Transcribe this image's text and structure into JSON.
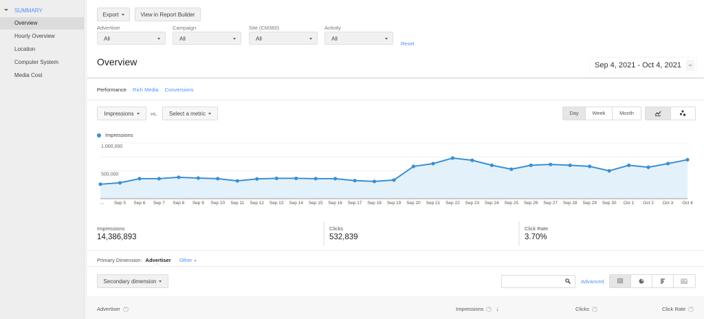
{
  "sidebar": {
    "section_label": "SUMMARY",
    "items": [
      {
        "label": "Overview",
        "active": true
      },
      {
        "label": "Hourly Overview",
        "active": false
      },
      {
        "label": "Location",
        "active": false
      },
      {
        "label": "Computer System",
        "active": false
      },
      {
        "label": "Media Cost",
        "active": false
      }
    ]
  },
  "toolbar": {
    "export_label": "Export",
    "report_builder_label": "View in Report Builder"
  },
  "filters": [
    {
      "label": "Advertiser",
      "value": "All"
    },
    {
      "label": "Campaign",
      "value": "All"
    },
    {
      "label": "Site (CM360)",
      "value": "All"
    },
    {
      "label": "Activity",
      "value": "All"
    }
  ],
  "reset_label": "Reset",
  "page_title": "Overview",
  "date_range": "Sep 4, 2021 - Oct 4, 2021",
  "tabs": [
    {
      "label": "Performance",
      "active": true
    },
    {
      "label": "Rich Media",
      "active": false
    },
    {
      "label": "Conversions",
      "active": false
    }
  ],
  "metric_selector": {
    "primary": "Impressions",
    "vs_label": "vs.",
    "secondary": "Select a metric"
  },
  "granularity": {
    "options": [
      "Day",
      "Week",
      "Month"
    ],
    "selected": "Day"
  },
  "chart_type_toggle": {
    "options": [
      "line-chart-icon",
      "motion-chart-icon"
    ],
    "selected": "line-chart-icon"
  },
  "colors": {
    "accent": "#4d90fe",
    "series": "#3a8fd0",
    "area_fill": "#e3f1fa",
    "sidebar_bg": "#eeeeee"
  },
  "chart_data": {
    "type": "area",
    "title": "",
    "legend": [
      "Impressions"
    ],
    "legend_position": "top-left",
    "xlabel": "",
    "ylabel": "",
    "ylim": [
      0,
      1000000
    ],
    "yticks": [
      "500,000",
      "1,000,000"
    ],
    "grid": true,
    "categories": [
      "...",
      "Sep 5",
      "Sep 6",
      "Sep 7",
      "Sep 8",
      "Sep 9",
      "Sep 10",
      "Sep 11",
      "Sep 12",
      "Sep 13",
      "Sep 14",
      "Sep 15",
      "Sep 16",
      "Sep 17",
      "Sep 18",
      "Sep 19",
      "Sep 20",
      "Sep 21",
      "Sep 22",
      "Sep 23",
      "Sep 24",
      "Sep 25",
      "Sep 26",
      "Sep 27",
      "Sep 28",
      "Sep 29",
      "Sep 30",
      "Oct 1",
      "Oct 2",
      "Oct 3",
      "Oct 4"
    ],
    "series": [
      {
        "name": "Impressions",
        "values": [
          260000,
          285000,
          360000,
          360000,
          385000,
          370000,
          360000,
          320000,
          355000,
          365000,
          365000,
          360000,
          360000,
          325000,
          310000,
          335000,
          580000,
          630000,
          730000,
          690000,
          600000,
          530000,
          600000,
          615000,
          600000,
          580000,
          500000,
          600000,
          565000,
          630000,
          700000
        ]
      }
    ]
  },
  "stats": [
    {
      "label": "Impressions",
      "value": "14,386,893"
    },
    {
      "label": "Clicks",
      "value": "532,839"
    },
    {
      "label": "Click Rate",
      "value": "3.70%"
    }
  ],
  "primary_dimension": {
    "label": "Primary Dimension:",
    "selected": "Advertiser",
    "other_label": "Other"
  },
  "secondary_dimension_label": "Secondary dimension",
  "table_search": {
    "value": "",
    "placeholder": ""
  },
  "advanced_label": "Advanced",
  "view_toggle": {
    "options": [
      "table-view-icon",
      "pie-view-icon",
      "bar-view-icon",
      "comparison-view-icon"
    ],
    "selected": "table-view-icon"
  },
  "table": {
    "columns": [
      {
        "label": "Advertiser",
        "help": "?"
      },
      {
        "label": "Impressions",
        "help": "?",
        "sorted": "desc"
      },
      {
        "label": "Clicks",
        "help": "?"
      },
      {
        "label": "Click Rate",
        "help": "?"
      }
    ],
    "sort_arrow": "↓"
  }
}
